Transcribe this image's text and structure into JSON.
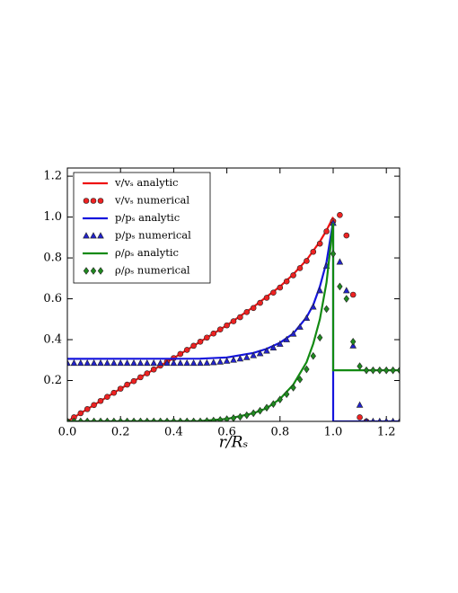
{
  "chart_data": {
    "type": "line",
    "xlabel": "r/Rₛ",
    "xlim": [
      0,
      1.25
    ],
    "ylim": [
      0,
      1.24
    ],
    "xticks": [
      {
        "value": 0,
        "label": "0.0"
      },
      0.2,
      0.4,
      0.6,
      0.8,
      {
        "value": 1,
        "label": "1.0"
      },
      1.2
    ],
    "yticks": [
      0.2,
      0.4,
      0.6,
      0.8,
      {
        "value": 1,
        "label": "1.0"
      },
      1.2
    ],
    "grid": false,
    "legend": "upper left",
    "series": [
      {
        "name": "v/vₛ analytic",
        "color": "#ee1111",
        "style": "line",
        "x": [
          0,
          0.1,
          0.2,
          0.3,
          0.4,
          0.5,
          0.6,
          0.7,
          0.8,
          0.85,
          0.9,
          0.95,
          0.975,
          1.0
        ],
        "values": [
          0,
          0.08,
          0.16,
          0.235,
          0.31,
          0.39,
          0.47,
          0.56,
          0.66,
          0.72,
          0.79,
          0.88,
          0.935,
          1.0
        ]
      },
      {
        "name": "v/vₛ numerical",
        "color": "#ee2222",
        "style": "markers",
        "marker": "circle",
        "x": [
          0,
          0.025,
          0.05,
          0.075,
          0.1,
          0.125,
          0.15,
          0.175,
          0.2,
          0.225,
          0.25,
          0.275,
          0.3,
          0.325,
          0.35,
          0.375,
          0.4,
          0.425,
          0.45,
          0.475,
          0.5,
          0.525,
          0.55,
          0.575,
          0.6,
          0.625,
          0.65,
          0.675,
          0.7,
          0.725,
          0.75,
          0.775,
          0.8,
          0.825,
          0.85,
          0.875,
          0.9,
          0.925,
          0.95,
          0.975,
          1.0,
          1.025,
          1.05,
          1.075,
          1.1,
          1.125
        ],
        "values": [
          0,
          0.02,
          0.04,
          0.06,
          0.08,
          0.1,
          0.12,
          0.14,
          0.16,
          0.18,
          0.197,
          0.216,
          0.235,
          0.254,
          0.273,
          0.292,
          0.31,
          0.33,
          0.35,
          0.37,
          0.39,
          0.41,
          0.43,
          0.45,
          0.47,
          0.49,
          0.51,
          0.535,
          0.555,
          0.58,
          0.605,
          0.63,
          0.655,
          0.685,
          0.715,
          0.75,
          0.785,
          0.83,
          0.87,
          0.93,
          0.98,
          1.01,
          0.91,
          0.62,
          0.02,
          0
        ]
      },
      {
        "name": "p/pₛ analytic",
        "color": "#1515dd",
        "style": "line",
        "x": [
          0,
          0.5,
          0.6,
          0.7,
          0.75,
          0.8,
          0.85,
          0.9,
          0.925,
          0.95,
          0.975,
          1.0,
          1.0,
          1.25
        ],
        "values": [
          0.306,
          0.307,
          0.313,
          0.335,
          0.355,
          0.385,
          0.43,
          0.51,
          0.57,
          0.66,
          0.78,
          0.98,
          0,
          0
        ]
      },
      {
        "name": "p/pₛ numerical",
        "color": "#2222cc",
        "style": "markers",
        "marker": "triangle",
        "x": [
          0,
          0.025,
          0.05,
          0.075,
          0.1,
          0.125,
          0.15,
          0.175,
          0.2,
          0.225,
          0.25,
          0.275,
          0.3,
          0.325,
          0.35,
          0.375,
          0.4,
          0.425,
          0.45,
          0.475,
          0.5,
          0.525,
          0.55,
          0.575,
          0.6,
          0.625,
          0.65,
          0.675,
          0.7,
          0.725,
          0.75,
          0.775,
          0.8,
          0.825,
          0.85,
          0.875,
          0.9,
          0.925,
          0.95,
          0.975,
          1.0,
          1.025,
          1.05,
          1.075,
          1.1,
          1.125,
          1.15,
          1.175,
          1.2,
          1.225,
          1.25
        ],
        "values": [
          0.285,
          0.285,
          0.285,
          0.285,
          0.285,
          0.285,
          0.285,
          0.285,
          0.285,
          0.285,
          0.285,
          0.285,
          0.285,
          0.285,
          0.285,
          0.285,
          0.285,
          0.285,
          0.285,
          0.285,
          0.285,
          0.286,
          0.288,
          0.291,
          0.295,
          0.3,
          0.306,
          0.313,
          0.322,
          0.332,
          0.345,
          0.36,
          0.378,
          0.4,
          0.428,
          0.462,
          0.505,
          0.56,
          0.64,
          0.76,
          0.97,
          0.78,
          0.64,
          0.37,
          0.08,
          0,
          0,
          0,
          0,
          0,
          0
        ]
      },
      {
        "name": "ρ/ρₛ analytic",
        "color": "#128a12",
        "style": "line",
        "x": [
          0,
          0.5,
          0.6,
          0.7,
          0.75,
          0.8,
          0.85,
          0.9,
          0.925,
          0.95,
          0.975,
          1.0,
          1.0,
          1.25
        ],
        "values": [
          0,
          0.002,
          0.012,
          0.04,
          0.065,
          0.11,
          0.18,
          0.29,
          0.38,
          0.5,
          0.68,
          0.97,
          0.25,
          0.25
        ]
      },
      {
        "name": "ρ/ρₛ numerical",
        "color": "#1f8a1f",
        "style": "markers",
        "marker": "diamond",
        "x": [
          0,
          0.025,
          0.05,
          0.075,
          0.1,
          0.125,
          0.15,
          0.175,
          0.2,
          0.225,
          0.25,
          0.275,
          0.3,
          0.325,
          0.35,
          0.375,
          0.4,
          0.425,
          0.45,
          0.475,
          0.5,
          0.525,
          0.55,
          0.575,
          0.6,
          0.625,
          0.65,
          0.675,
          0.7,
          0.725,
          0.75,
          0.775,
          0.8,
          0.825,
          0.85,
          0.875,
          0.9,
          0.925,
          0.95,
          0.975,
          1.0,
          1.025,
          1.05,
          1.075,
          1.1,
          1.125,
          1.15,
          1.175,
          1.2,
          1.225,
          1.25
        ],
        "values": [
          0,
          0,
          0,
          0,
          0,
          0,
          0,
          0,
          0,
          0,
          0,
          0,
          0,
          0,
          0,
          0,
          0,
          0,
          0,
          0,
          0,
          0.002,
          0.004,
          0.007,
          0.011,
          0.016,
          0.022,
          0.03,
          0.04,
          0.052,
          0.067,
          0.085,
          0.107,
          0.133,
          0.165,
          0.205,
          0.255,
          0.32,
          0.41,
          0.55,
          0.82,
          0.66,
          0.6,
          0.39,
          0.27,
          0.25,
          0.25,
          0.25,
          0.25,
          0.25,
          0.25
        ]
      }
    ]
  }
}
